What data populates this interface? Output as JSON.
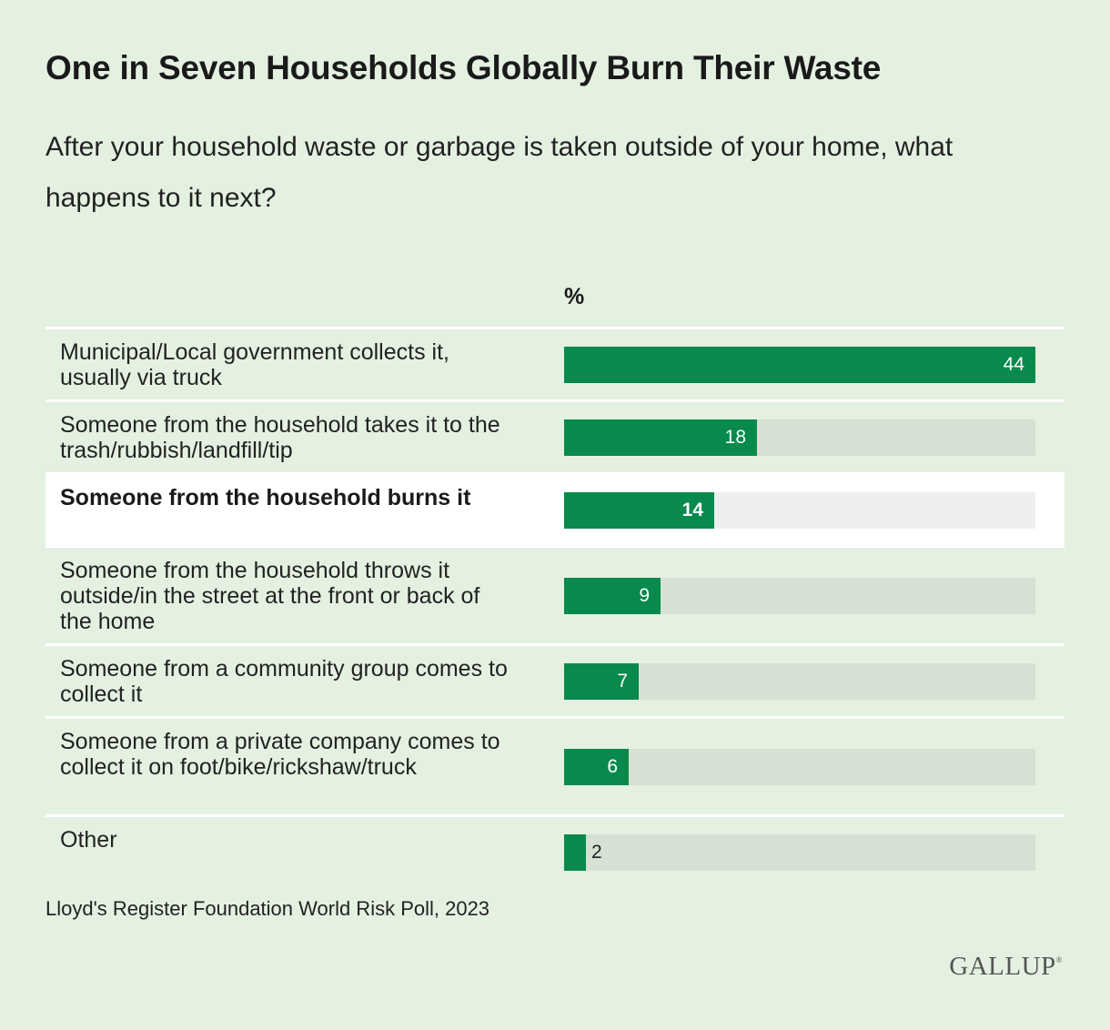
{
  "title": "One in Seven Households Globally Burn Their Waste",
  "subtitle": "After your household waste or garbage is taken outside of your home, what happens to it next?",
  "source": "Lloyd's Register Foundation World Risk Poll, 2023",
  "logo_text": "GALLUP",
  "colors": {
    "background": "#e4f1e1",
    "bar": "#078a4b",
    "track": "#d6e1d3",
    "highlight_row": "#ffffff",
    "highlight_track": "#eeeeee"
  },
  "chart_data": {
    "type": "bar",
    "orientation": "horizontal",
    "unit_header": "%",
    "xlim": [
      0,
      44
    ],
    "categories": [
      "Municipal/Local government collects it, usually via truck",
      "Someone from the household takes it to the trash/rubbish/landfill/tip",
      "Someone from the household burns it",
      "Someone from the household throws it outside/in the street at the front or back of the home",
      "Someone from a community group comes to collect it",
      "Someone from a private company comes to collect it on foot/bike/rickshaw/truck",
      "Other"
    ],
    "values": [
      44,
      18,
      14,
      9,
      7,
      6,
      2
    ],
    "highlighted_category": "Someone from the household burns it"
  }
}
